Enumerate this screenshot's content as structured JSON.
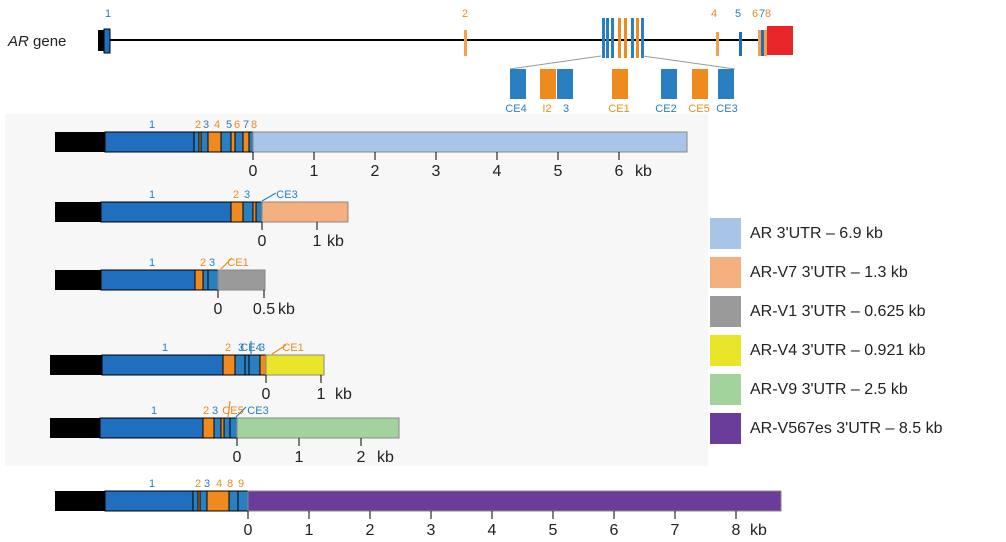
{
  "colors": {
    "exon_blue": "#1f6fbe",
    "exon_orange": "#f4a04d",
    "promoter_black": "#000000",
    "last_exon_red": "#e8262a",
    "label_blue": "#2a7fc1",
    "label_orange": "#ef8a1e",
    "panel_bg": "#f7f7f7"
  },
  "gene": {
    "label_italic": "AR",
    "label_rest": " gene",
    "exon_labels": [
      {
        "text": "1",
        "color": "blue"
      },
      {
        "text": "2",
        "color": "orange"
      },
      {
        "text": "4",
        "color": "orange"
      },
      {
        "text": "5",
        "color": "blue"
      },
      {
        "text": "6",
        "color": "orange"
      },
      {
        "text": "7",
        "color": "blue"
      },
      {
        "text": "8",
        "color": "orange"
      }
    ],
    "cryptic_exons": [
      {
        "text": "CE4",
        "color": "blue"
      },
      {
        "text": "I2",
        "color": "orange"
      },
      {
        "text": "3",
        "color": "blue"
      },
      {
        "text": "CE1",
        "color": "orange"
      },
      {
        "text": "CE2",
        "color": "blue"
      },
      {
        "text": "CE5",
        "color": "orange"
      },
      {
        "text": "CE3",
        "color": "blue"
      }
    ]
  },
  "transcripts": [
    {
      "name": "AR",
      "utr_color": "#a8c4e6",
      "exon_labels": [
        {
          "text": "1",
          "color": "blue"
        },
        {
          "text": "2",
          "color": "orange"
        },
        {
          "text": "3",
          "color": "blue"
        },
        {
          "text": "4",
          "color": "orange"
        },
        {
          "text": "5",
          "color": "blue"
        },
        {
          "text": "6",
          "color": "orange"
        },
        {
          "text": "7",
          "color": "blue"
        },
        {
          "text": "8",
          "color": "orange"
        }
      ],
      "scale_ticks": [
        "0",
        "1",
        "2",
        "3",
        "4",
        "5",
        "6"
      ],
      "scale_unit": "kb"
    },
    {
      "name": "AR-V7",
      "utr_color": "#f5b07f",
      "exon_labels": [
        {
          "text": "1",
          "color": "blue"
        },
        {
          "text": "2",
          "color": "orange"
        },
        {
          "text": "3",
          "color": "blue"
        },
        {
          "text": "CE3",
          "color": "blue"
        }
      ],
      "scale_ticks": [
        "0",
        "1"
      ],
      "scale_unit": "kb"
    },
    {
      "name": "AR-V1",
      "utr_color": "#9a9a9a",
      "exon_labels": [
        {
          "text": "1",
          "color": "blue"
        },
        {
          "text": "2",
          "color": "orange"
        },
        {
          "text": "3",
          "color": "blue"
        },
        {
          "text": "CE1",
          "color": "orange"
        }
      ],
      "scale_ticks": [
        "0",
        "0.5"
      ],
      "scale_unit": "kb"
    },
    {
      "name": "AR-V4",
      "utr_color": "#e9e62a",
      "exon_labels": [
        {
          "text": "1",
          "color": "blue"
        },
        {
          "text": "2",
          "color": "orange"
        },
        {
          "text": "3",
          "color": "blue"
        },
        {
          "text": "CE4",
          "color": "blue"
        },
        {
          "text": "3",
          "color": "blue"
        },
        {
          "text": "CE1",
          "color": "orange"
        }
      ],
      "scale_ticks": [
        "0",
        "1"
      ],
      "scale_unit": "kb"
    },
    {
      "name": "AR-V9",
      "utr_color": "#a3d39c",
      "exon_labels": [
        {
          "text": "1",
          "color": "blue"
        },
        {
          "text": "2",
          "color": "orange"
        },
        {
          "text": "3",
          "color": "blue"
        },
        {
          "text": "CE5",
          "color": "orange"
        },
        {
          "text": "CE3",
          "color": "blue"
        }
      ],
      "scale_ticks": [
        "0",
        "1",
        "2"
      ],
      "scale_unit": "kb"
    },
    {
      "name": "AR-V567es",
      "utr_color": "#6a3d9a",
      "exon_labels": [
        {
          "text": "1",
          "color": "blue"
        },
        {
          "text": "2",
          "color": "orange"
        },
        {
          "text": "3",
          "color": "blue"
        },
        {
          "text": "4",
          "color": "orange"
        },
        {
          "text": "8",
          "color": "orange"
        },
        {
          "text": "9",
          "color": "orange"
        }
      ],
      "scale_ticks": [
        "0",
        "1",
        "2",
        "3",
        "4",
        "5",
        "6",
        "7",
        "8"
      ],
      "scale_unit": "kb"
    }
  ],
  "legend": [
    {
      "label": "AR 3'UTR – 6.9 kb",
      "color": "#a8c4e6"
    },
    {
      "label": "AR-V7 3'UTR – 1.3 kb",
      "color": "#f5b07f"
    },
    {
      "label": "AR-V1 3'UTR – 0.625 kb",
      "color": "#9a9a9a"
    },
    {
      "label": "AR-V4 3'UTR – 0.921 kb",
      "color": "#e9e62a"
    },
    {
      "label": "AR-V9 3'UTR – 2.5 kb",
      "color": "#a3d39c"
    },
    {
      "label": "AR-V567es 3'UTR – 8.5 kb",
      "color": "#6a3d9a"
    }
  ]
}
